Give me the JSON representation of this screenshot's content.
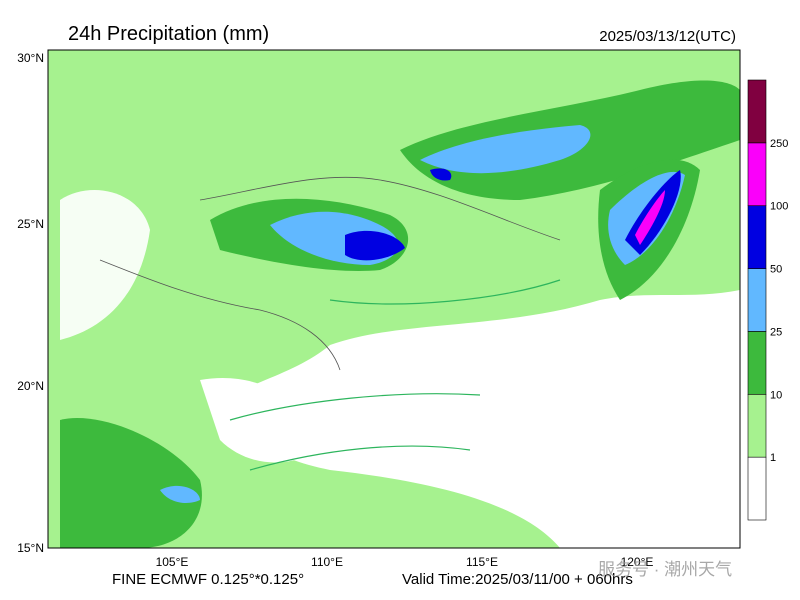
{
  "header": {
    "title": "24h Precipitation (mm)",
    "date": "2025/03/13/12(UTC)"
  },
  "map": {
    "lat_labels": [
      "30°N",
      "25°N",
      "20°N",
      "15°N"
    ],
    "lon_labels": [
      "105°E",
      "110°E",
      "115°E",
      "120°E"
    ]
  },
  "legend": {
    "levels": [
      {
        "label": "1",
        "color": "#ffffff"
      },
      {
        "label": "10",
        "color": "#a6f28f"
      },
      {
        "label": "25",
        "color": "#3dba3d"
      },
      {
        "label": "50",
        "color": "#61b8ff"
      },
      {
        "label": "100",
        "color": "#0000e1"
      },
      {
        "label": "250",
        "color": "#fa00fa"
      },
      {
        "label": null,
        "color": "#800040"
      }
    ]
  },
  "footer": {
    "model": "FINE ECMWF 0.125°*0.125°",
    "valid_time": "Valid Time:2025/03/11/00 + 060hrs",
    "watermark": "服务号 · 潮州天气"
  }
}
